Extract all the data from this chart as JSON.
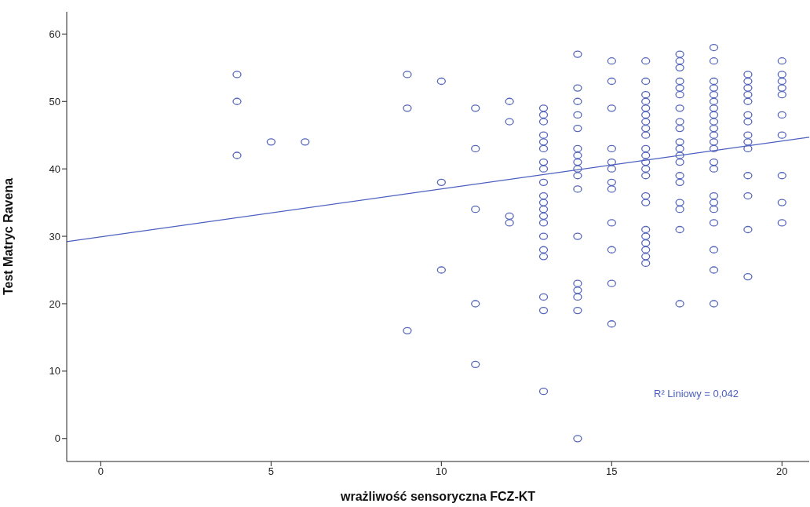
{
  "chart_data": {
    "type": "scatter",
    "xlabel": "wrażliwość sensoryczna FCZ-KT",
    "ylabel": "Test Matryc Ravena",
    "xlim": [
      -1,
      20.8
    ],
    "xticks": [
      0,
      5,
      10,
      15,
      20
    ],
    "ylim": [
      -3.4,
      63.3
    ],
    "yticks": [
      0,
      10,
      20,
      30,
      40,
      50,
      60
    ],
    "annotations": [
      "R² Liniowy = 0,042"
    ],
    "series": [
      {
        "marker": "circle",
        "color": "#5566bb",
        "x": [
          4,
          4,
          4,
          5,
          6,
          9,
          9,
          9,
          10,
          10,
          10,
          11,
          11,
          11,
          11,
          11,
          12,
          12,
          12,
          12,
          13,
          13,
          13,
          13,
          13,
          13,
          13,
          13,
          13,
          13,
          13,
          13,
          13,
          13,
          13,
          13,
          13,
          13,
          13,
          13,
          14,
          14,
          14,
          14,
          14,
          14,
          14,
          14,
          14,
          14,
          14,
          14,
          14,
          14,
          14,
          14,
          14,
          15,
          15,
          15,
          15,
          15,
          15,
          15,
          15,
          15,
          15,
          15,
          15,
          16,
          16,
          16,
          16,
          16,
          16,
          16,
          16,
          16,
          16,
          16,
          16,
          16,
          16,
          16,
          16,
          16,
          16,
          16,
          16,
          16,
          16,
          17,
          17,
          17,
          17,
          17,
          17,
          17,
          17,
          17,
          17,
          17,
          17,
          17,
          17,
          17,
          17,
          17,
          17,
          17,
          18,
          18,
          18,
          18,
          18,
          18,
          18,
          18,
          18,
          18,
          18,
          18,
          18,
          18,
          18,
          18,
          18,
          18,
          18,
          18,
          18,
          18,
          19,
          19,
          19,
          19,
          19,
          19,
          19,
          19,
          19,
          19,
          19,
          19,
          19,
          19,
          20,
          20,
          20,
          20,
          20,
          20,
          20,
          20,
          20,
          20
        ],
        "values": [
          54,
          50,
          42,
          44,
          44,
          54,
          49,
          16,
          53,
          38,
          25,
          49,
          43,
          34,
          20,
          11,
          50,
          47,
          33,
          32,
          49,
          48,
          47,
          45,
          44,
          43,
          41,
          40,
          38,
          36,
          35,
          34,
          33,
          32,
          30,
          28,
          27,
          21,
          19,
          7,
          57,
          52,
          50,
          48,
          46,
          43,
          42,
          41,
          40,
          39,
          37,
          30,
          23,
          22,
          21,
          19,
          0,
          56,
          53,
          49,
          43,
          41,
          40,
          38,
          37,
          32,
          28,
          23,
          17,
          56,
          53,
          51,
          50,
          49,
          48,
          47,
          46,
          45,
          43,
          42,
          41,
          40,
          39,
          36,
          35,
          31,
          30,
          29,
          28,
          27,
          26,
          57,
          56,
          55,
          53,
          52,
          51,
          49,
          47,
          46,
          44,
          43,
          42,
          41,
          39,
          38,
          35,
          34,
          31,
          20,
          58,
          56,
          53,
          52,
          51,
          50,
          49,
          48,
          47,
          46,
          45,
          44,
          43,
          41,
          40,
          36,
          35,
          34,
          32,
          28,
          25,
          20,
          54,
          53,
          52,
          51,
          50,
          48,
          47,
          45,
          44,
          43,
          39,
          36,
          31,
          24,
          56,
          54,
          53,
          52,
          51,
          48,
          45,
          39,
          35,
          32
        ]
      },
      {
        "type": "line",
        "marker": "none",
        "color": "#4a5fbf",
        "x": [
          -1,
          20.8
        ],
        "values": [
          29.2,
          44.7
        ]
      }
    ]
  }
}
